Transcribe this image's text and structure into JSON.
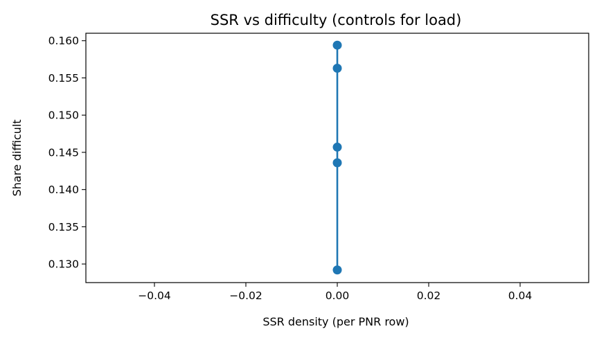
{
  "chart_data": {
    "type": "line",
    "title": "SSR vs difficulty (controls for load)",
    "xlabel": "SSR density (per PNR row)",
    "ylabel": "Share difficult",
    "xlim": [
      -0.055,
      0.055
    ],
    "ylim": [
      0.1275,
      0.161
    ],
    "xticks": [
      -0.04,
      -0.02,
      0.0,
      0.02,
      0.04
    ],
    "xtick_labels": [
      "−0.04",
      "−0.02",
      "0.00",
      "0.02",
      "0.04"
    ],
    "yticks": [
      0.13,
      0.135,
      0.14,
      0.145,
      0.15,
      0.155,
      0.16
    ],
    "ytick_labels": [
      "0.130",
      "0.135",
      "0.140",
      "0.145",
      "0.150",
      "0.155",
      "0.160"
    ],
    "grid": false,
    "legend": false,
    "series": [
      {
        "color": "#1f77b4",
        "marker": "circle",
        "x": [
          0.0,
          0.0,
          0.0,
          0.0,
          0.0
        ],
        "y": [
          0.1292,
          0.1436,
          0.1457,
          0.1563,
          0.1594
        ]
      }
    ]
  }
}
